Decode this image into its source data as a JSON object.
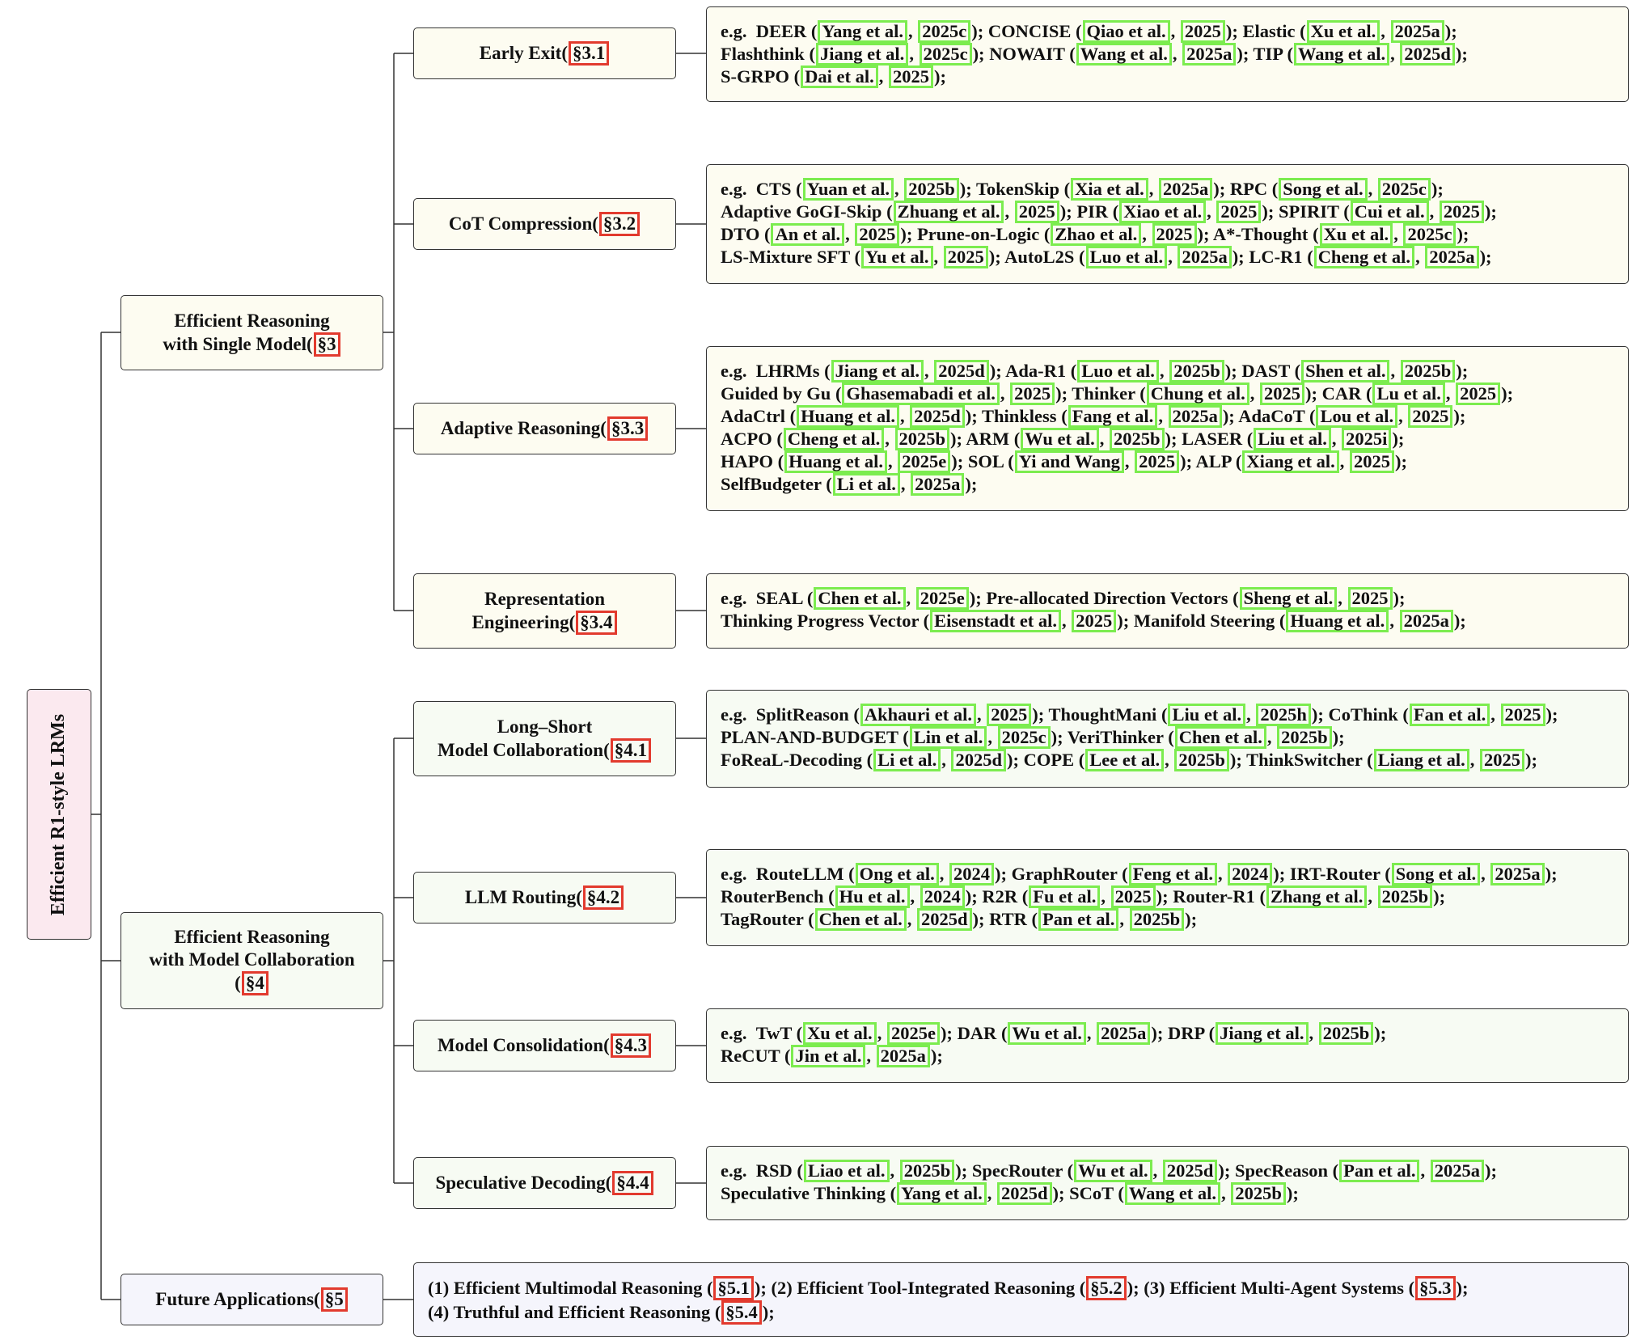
{
  "root": {
    "label": "Efficient R1-style LRMs"
  },
  "prefix": "e.g.",
  "branches": [
    {
      "key": "b1",
      "label": [
        "Efficient Reasoning",
        "with Single Model"
      ],
      "sec": "§3",
      "children": [
        {
          "key": "c1",
          "label": [
            "Early Exit"
          ],
          "sec": "§3.1",
          "lines": [
            [
              {
                "name": "DEER",
                "cite": [
                  "Yang et al.",
                  "2025c"
                ]
              },
              {
                "name": "CONCISE",
                "cite": [
                  "Qiao et al.",
                  "2025"
                ]
              },
              {
                "name": "Elastic",
                "cite": [
                  "Xu et al.",
                  "2025a"
                ]
              }
            ],
            [
              {
                "name": "Flashthink",
                "cite": [
                  "Jiang et al.",
                  "2025c"
                ]
              },
              {
                "name": "NOWAIT",
                "cite": [
                  "Wang et al.",
                  "2025a"
                ]
              },
              {
                "name": "TIP",
                "cite": [
                  "Wang et al.",
                  "2025d"
                ]
              }
            ],
            [
              {
                "name": "S-GRPO",
                "cite": [
                  "Dai et al.",
                  "2025"
                ]
              }
            ]
          ]
        },
        {
          "key": "c2",
          "label": [
            "CoT Compression"
          ],
          "sec": "§3.2",
          "lines": [
            [
              {
                "name": "CTS",
                "cite": [
                  "Yuan et al.",
                  "2025b"
                ]
              },
              {
                "name": "TokenSkip",
                "cite": [
                  "Xia et al.",
                  "2025a"
                ]
              },
              {
                "name": "RPC",
                "cite": [
                  "Song et al.",
                  "2025c"
                ]
              }
            ],
            [
              {
                "name": "Adaptive GoGI-Skip",
                "cite": [
                  "Zhuang et al.",
                  "2025"
                ]
              },
              {
                "name": "PIR",
                "cite": [
                  "Xiao et al.",
                  "2025"
                ]
              },
              {
                "name": "SPIRIT",
                "cite": [
                  "Cui et al.",
                  "2025"
                ]
              }
            ],
            [
              {
                "name": "DTO",
                "cite": [
                  "An et al.",
                  "2025"
                ]
              },
              {
                "name": "Prune-on-Logic",
                "cite": [
                  "Zhao et al.",
                  "2025"
                ]
              },
              {
                "name": "A*-Thought",
                "cite": [
                  "Xu et al.",
                  "2025c"
                ]
              }
            ],
            [
              {
                "name": "LS-Mixture SFT",
                "cite": [
                  "Yu et al.",
                  "2025"
                ]
              },
              {
                "name": "AutoL2S",
                "cite": [
                  "Luo et al.",
                  "2025a"
                ]
              },
              {
                "name": "LC-R1",
                "cite": [
                  "Cheng et al.",
                  "2025a"
                ]
              }
            ]
          ]
        },
        {
          "key": "c3",
          "label": [
            "Adaptive Reasoning"
          ],
          "sec": "§3.3",
          "lines": [
            [
              {
                "name": "LHRMs",
                "cite": [
                  "Jiang et al.",
                  "2025d"
                ]
              },
              {
                "name": "Ada-R1",
                "cite": [
                  "Luo et al.",
                  "2025b"
                ]
              },
              {
                "name": "DAST",
                "cite": [
                  "Shen et al.",
                  "2025b"
                ]
              }
            ],
            [
              {
                "name": "Guided by Gu",
                "cite": [
                  "Ghasemabadi et al.",
                  "2025"
                ]
              },
              {
                "name": "Thinker",
                "cite": [
                  "Chung et al.",
                  "2025"
                ]
              },
              {
                "name": "CAR",
                "cite": [
                  "Lu et al.",
                  "2025"
                ]
              }
            ],
            [
              {
                "name": "AdaCtrl",
                "cite": [
                  "Huang et al.",
                  "2025d"
                ]
              },
              {
                "name": "Thinkless",
                "cite": [
                  "Fang et al.",
                  "2025a"
                ]
              },
              {
                "name": "AdaCoT",
                "cite": [
                  "Lou et al.",
                  "2025"
                ]
              }
            ],
            [
              {
                "name": "ACPO",
                "cite": [
                  "Cheng et al.",
                  "2025b"
                ]
              },
              {
                "name": "ARM",
                "cite": [
                  "Wu et al.",
                  "2025b"
                ]
              },
              {
                "name": "LASER",
                "cite": [
                  "Liu et al.",
                  "2025i"
                ]
              }
            ],
            [
              {
                "name": "HAPO",
                "cite": [
                  "Huang et al.",
                  "2025e"
                ]
              },
              {
                "name": "SOL",
                "cite": [
                  "Yi and Wang",
                  "2025"
                ]
              },
              {
                "name": "ALP",
                "cite": [
                  "Xiang et al.",
                  "2025"
                ]
              }
            ],
            [
              {
                "name": "SelfBudgeter",
                "cite": [
                  "Li et al.",
                  "2025a"
                ]
              }
            ]
          ]
        },
        {
          "key": "c4",
          "label": [
            "Representation",
            "Engineering"
          ],
          "sec": "§3.4",
          "lines": [
            [
              {
                "name": "SEAL",
                "cite": [
                  "Chen et al.",
                  "2025e"
                ]
              },
              {
                "name": "Pre-allocated Direction Vectors",
                "cite": [
                  "Sheng et al.",
                  "2025"
                ]
              }
            ],
            [
              {
                "name": "Thinking Progress Vector",
                "cite": [
                  "Eisenstadt et al.",
                  "2025"
                ]
              },
              {
                "name": "Manifold Steering",
                "cite": [
                  "Huang et al.",
                  "2025a"
                ]
              }
            ]
          ]
        }
      ]
    },
    {
      "key": "b2",
      "label": [
        "Efficient Reasoning",
        "with Model Collaboration",
        ""
      ],
      "sec": "§4",
      "children": [
        {
          "key": "c5",
          "label": [
            "Long–Short",
            "Model Collaboration"
          ],
          "sec": "§4.1",
          "lines": [
            [
              {
                "name": "SplitReason",
                "cite": [
                  "Akhauri et al.",
                  "2025"
                ]
              },
              {
                "name": "ThoughtMani",
                "cite": [
                  "Liu et al.",
                  "2025h"
                ]
              },
              {
                "name": "CoThink",
                "cite": [
                  "Fan et al.",
                  "2025"
                ]
              }
            ],
            [
              {
                "name": "PLAN-AND-BUDGET",
                "cite": [
                  "Lin et al.",
                  "2025c"
                ]
              },
              {
                "name": "VeriThinker",
                "cite": [
                  "Chen et al.",
                  "2025b"
                ]
              }
            ],
            [
              {
                "name": "FoReaL-Decoding",
                "cite": [
                  "Li et al.",
                  "2025d"
                ]
              },
              {
                "name": "COPE",
                "cite": [
                  "Lee et al.",
                  "2025b"
                ]
              },
              {
                "name": "ThinkSwitcher",
                "cite": [
                  "Liang et al.",
                  "2025"
                ]
              }
            ]
          ]
        },
        {
          "key": "c6",
          "label": [
            "LLM Routing"
          ],
          "sec": "§4.2",
          "lines": [
            [
              {
                "name": "RouteLLM",
                "cite": [
                  "Ong et al.",
                  "2024"
                ]
              },
              {
                "name": "GraphRouter",
                "cite": [
                  "Feng et al.",
                  "2024"
                ]
              },
              {
                "name": "IRT-Router",
                "cite": [
                  "Song et al.",
                  "2025a"
                ]
              }
            ],
            [
              {
                "name": "RouterBench",
                "cite": [
                  "Hu et al.",
                  "2024"
                ]
              },
              {
                "name": "R2R",
                "cite": [
                  "Fu et al.",
                  "2025"
                ]
              },
              {
                "name": "Router-R1",
                "cite": [
                  "Zhang et al.",
                  "2025b"
                ]
              }
            ],
            [
              {
                "name": "TagRouter",
                "cite": [
                  "Chen et al.",
                  "2025d"
                ]
              },
              {
                "name": "RTR",
                "cite": [
                  "Pan et al.",
                  "2025b"
                ]
              }
            ]
          ]
        },
        {
          "key": "c7",
          "label": [
            "Model Consolidation"
          ],
          "sec": "§4.3",
          "lines": [
            [
              {
                "name": "TwT",
                "cite": [
                  "Xu et al.",
                  "2025e"
                ]
              },
              {
                "name": "DAR",
                "cite": [
                  "Wu et al.",
                  "2025a"
                ]
              },
              {
                "name": "DRP",
                "cite": [
                  "Jiang et al.",
                  "2025b"
                ]
              }
            ],
            [
              {
                "name": "ReCUT",
                "cite": [
                  "Jin et al.",
                  "2025a"
                ]
              }
            ]
          ]
        },
        {
          "key": "c8",
          "label": [
            "Speculative Decoding"
          ],
          "sec": "§4.4",
          "lines": [
            [
              {
                "name": "RSD",
                "cite": [
                  "Liao et al.",
                  "2025b"
                ]
              },
              {
                "name": "SpecRouter",
                "cite": [
                  "Wu et al.",
                  "2025d"
                ]
              },
              {
                "name": "SpecReason",
                "cite": [
                  "Pan et al.",
                  "2025a"
                ]
              }
            ],
            [
              {
                "name": "Speculative Thinking",
                "cite": [
                  "Yang et al.",
                  "2025d"
                ]
              },
              {
                "name": "SCoT",
                "cite": [
                  "Wang et al.",
                  "2025b"
                ]
              }
            ]
          ]
        }
      ]
    },
    {
      "key": "b3",
      "label": [
        "Future Applications"
      ],
      "sec": "§5",
      "future_lines": [
        [
          {
            "name": "(1) Efficient Multimodal Reasoning",
            "sec": "§5.1"
          },
          {
            "name": "(2) Efficient Tool-Integrated Reasoning",
            "sec": "§5.2"
          },
          {
            "name": "(3) Efficient Multi-Agent Systems",
            "sec": "§5.3"
          }
        ],
        [
          {
            "name": "(4) Truthful and Efficient Reasoning",
            "sec": "§5.4"
          }
        ]
      ]
    }
  ],
  "colors": {
    "root_bg": "#fbe9ef",
    "single_model_bg": "#fdfcf1",
    "collab_bg": "#f7fbf3",
    "future_bg": "#f5f5fc",
    "citation_border": "#7cec4f",
    "section_border": "#e23a2e",
    "connector": "#333333"
  }
}
